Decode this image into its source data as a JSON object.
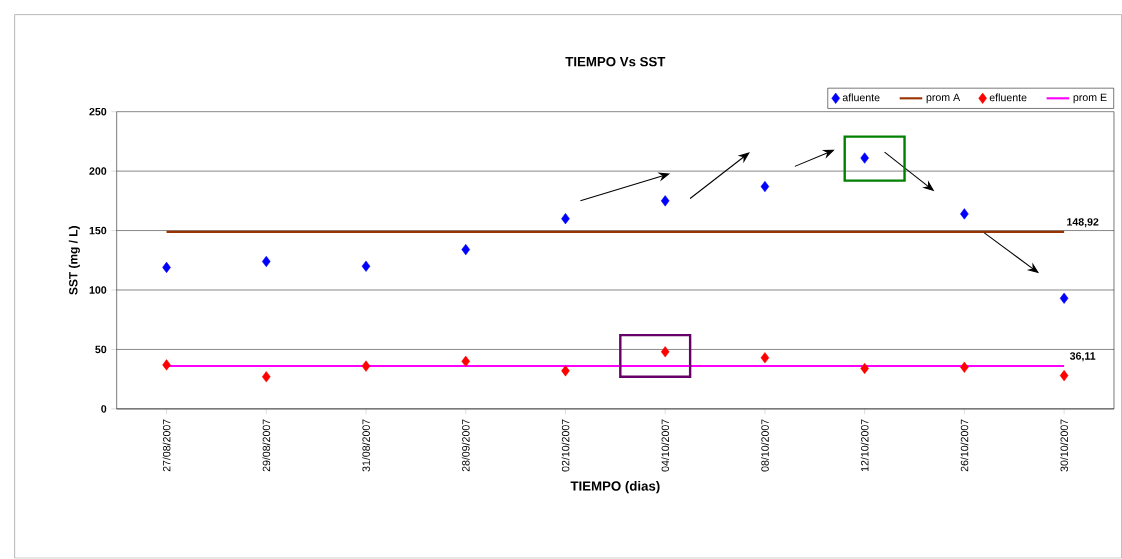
{
  "chart_data": {
    "type": "scatter",
    "title": "TIEMPO Vs SST",
    "xlabel": "TIEMPO (dias)",
    "ylabel": "SST (mg / L)",
    "categories": [
      "27/08/2007",
      "29/08/2007",
      "31/08/2007",
      "28/09/2007",
      "02/10/2007",
      "04/10/2007",
      "08/10/2007",
      "12/10/2007",
      "26/10/2007",
      "30/10/2007"
    ],
    "series": [
      {
        "name": "afluente",
        "marker": "diamond",
        "color": "#0000ff",
        "values": [
          119,
          124,
          120,
          134,
          160,
          175,
          187,
          211,
          164,
          93
        ]
      },
      {
        "name": "prom A",
        "type": "line",
        "marker": "none",
        "color": "#993300",
        "values": [
          148.92,
          148.92,
          148.92,
          148.92,
          148.92,
          148.92,
          148.92,
          148.92,
          148.92,
          148.92
        ],
        "value_labels": [
          null,
          null,
          null,
          null,
          null,
          null,
          null,
          null,
          null,
          "148,92"
        ]
      },
      {
        "name": "efluente",
        "marker": "diamond",
        "color": "#ff0000",
        "values": [
          37,
          27,
          36,
          40,
          32,
          48,
          43,
          34,
          35,
          28
        ]
      },
      {
        "name": "prom E",
        "type": "line",
        "marker": "none",
        "color": "#ff00ff",
        "values": [
          36.11,
          36.11,
          36.11,
          36.11,
          36.11,
          36.11,
          36.11,
          36.11,
          36.11,
          36.11
        ],
        "value_labels": [
          null,
          null,
          null,
          null,
          null,
          null,
          null,
          null,
          null,
          "36,11"
        ]
      }
    ],
    "ylim": [
      0,
      250
    ],
    "yticks": [
      0,
      50,
      100,
      150,
      200,
      250
    ],
    "grid": "y",
    "legend": "top right"
  }
}
